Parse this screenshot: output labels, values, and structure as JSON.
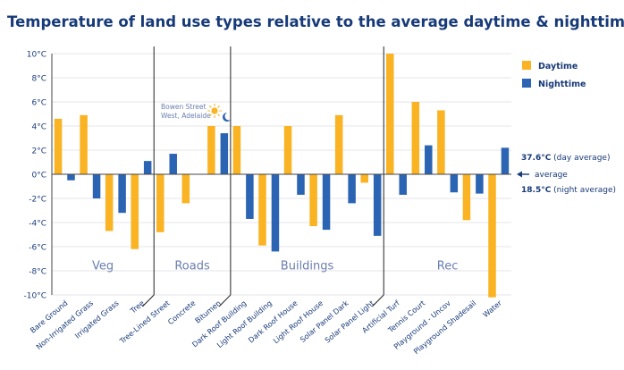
{
  "chart_data": {
    "type": "bar",
    "title": "Temperature of land use types relative to the average daytime & nighttime temperature",
    "ylim": [
      -10,
      10
    ],
    "yticks": [
      10,
      8,
      6,
      4,
      2,
      0,
      -2,
      -4,
      -6,
      -8,
      -10
    ],
    "ytick_labels": [
      "10°C",
      "8°C",
      "6°C",
      "4°C",
      "2°C",
      "0°C",
      "-2°C",
      "-4°C",
      "-6°C",
      "-8°C",
      "-10°C"
    ],
    "grid": true,
    "legend_position": "right",
    "categories": [
      "Bare Ground",
      "Non-Irrigated Grass",
      "Irrigated Grass",
      "Tree",
      "Tree-Lined Street",
      "Concrete",
      "Bitumen",
      "Dark Roof Building",
      "Light Roof Building",
      "Dark Roof House",
      "Light Roof House",
      "Solar Panel Dark",
      "Solar Panel Light",
      "Artificial Turf",
      "Tennis Court",
      "Playground - Uncov",
      "Playground Shadesail",
      "Water"
    ],
    "series": [
      {
        "name": "Daytime",
        "color": "#f9b323",
        "values": [
          4.6,
          4.9,
          -4.7,
          -6.2,
          -4.8,
          -2.4,
          4.0,
          4.0,
          -5.9,
          4.0,
          -4.3,
          4.9,
          -0.7,
          10.0,
          6.0,
          5.3,
          -3.8,
          -10.2
        ]
      },
      {
        "name": "Nighttime",
        "color": "#2b64b3",
        "values": [
          -0.5,
          -2.0,
          -3.2,
          1.1,
          1.7,
          0.0,
          3.4,
          -3.7,
          -6.4,
          -1.7,
          -4.6,
          -2.4,
          -5.1,
          -1.7,
          2.4,
          -1.5,
          -1.6,
          2.2
        ]
      }
    ],
    "groups": [
      {
        "label": "Veg",
        "start": 0,
        "end": 3
      },
      {
        "label": "Roads",
        "start": 4,
        "end": 6
      },
      {
        "label": "Buildings",
        "start": 7,
        "end": 12
      },
      {
        "label": "Rec",
        "start": 13,
        "end": 17
      }
    ],
    "annotations": {
      "bowen_line1": "Bowen Street",
      "bowen_line2": "West, Adelaide",
      "day_average_value": "37.6°C",
      "day_average_text": " (day average)",
      "average_label": "average",
      "night_average_value": "18.5°C",
      "night_average_text": " (night average)"
    },
    "icons": [
      "sun-icon",
      "moon-icon",
      "arrow-left-icon"
    ]
  }
}
